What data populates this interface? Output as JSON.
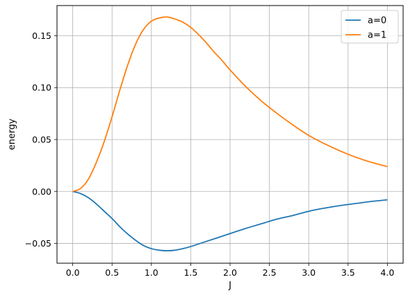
{
  "chart_data": {
    "type": "line",
    "xlabel": "J",
    "ylabel": "energy",
    "xlim": [
      -0.2,
      4.2
    ],
    "ylim": [
      -0.069,
      0.179
    ],
    "xticks": [
      0.0,
      0.5,
      1.0,
      1.5,
      2.0,
      2.5,
      3.0,
      3.5,
      4.0
    ],
    "xtick_labels": [
      "0.0",
      "0.5",
      "1.0",
      "1.5",
      "2.0",
      "2.5",
      "3.0",
      "3.5",
      "4.0"
    ],
    "yticks": [
      -0.05,
      0.0,
      0.05,
      0.1,
      0.15
    ],
    "ytick_labels": [
      "−0.05",
      "0.00",
      "0.05",
      "0.10",
      "0.15"
    ],
    "grid": true,
    "legend_position": "top-right",
    "x": [
      0.0,
      0.1,
      0.2,
      0.3,
      0.4,
      0.5,
      0.6,
      0.7,
      0.8,
      0.9,
      1.0,
      1.1,
      1.2,
      1.3,
      1.4,
      1.5,
      1.6,
      1.7,
      1.8,
      1.9,
      2.0,
      2.2,
      2.4,
      2.6,
      2.8,
      3.0,
      3.2,
      3.4,
      3.6,
      3.8,
      4.0
    ],
    "series": [
      {
        "name": "a=0",
        "color": "#1f77b4",
        "values": [
          0.0,
          -0.002,
          -0.006,
          -0.012,
          -0.019,
          -0.026,
          -0.034,
          -0.041,
          -0.047,
          -0.052,
          -0.055,
          -0.0565,
          -0.057,
          -0.0565,
          -0.055,
          -0.053,
          -0.0505,
          -0.048,
          -0.0455,
          -0.043,
          -0.0405,
          -0.0355,
          -0.031,
          -0.0265,
          -0.023,
          -0.019,
          -0.016,
          -0.0135,
          -0.0115,
          -0.0095,
          -0.008
        ]
      },
      {
        "name": "a=1",
        "color": "#ff7f0e",
        "values": [
          0.0,
          0.003,
          0.012,
          0.028,
          0.048,
          0.072,
          0.098,
          0.122,
          0.142,
          0.156,
          0.164,
          0.167,
          0.168,
          0.166,
          0.163,
          0.158,
          0.151,
          0.143,
          0.134,
          0.126,
          0.117,
          0.101,
          0.087,
          0.075,
          0.064,
          0.054,
          0.046,
          0.039,
          0.033,
          0.028,
          0.024
        ]
      }
    ]
  }
}
